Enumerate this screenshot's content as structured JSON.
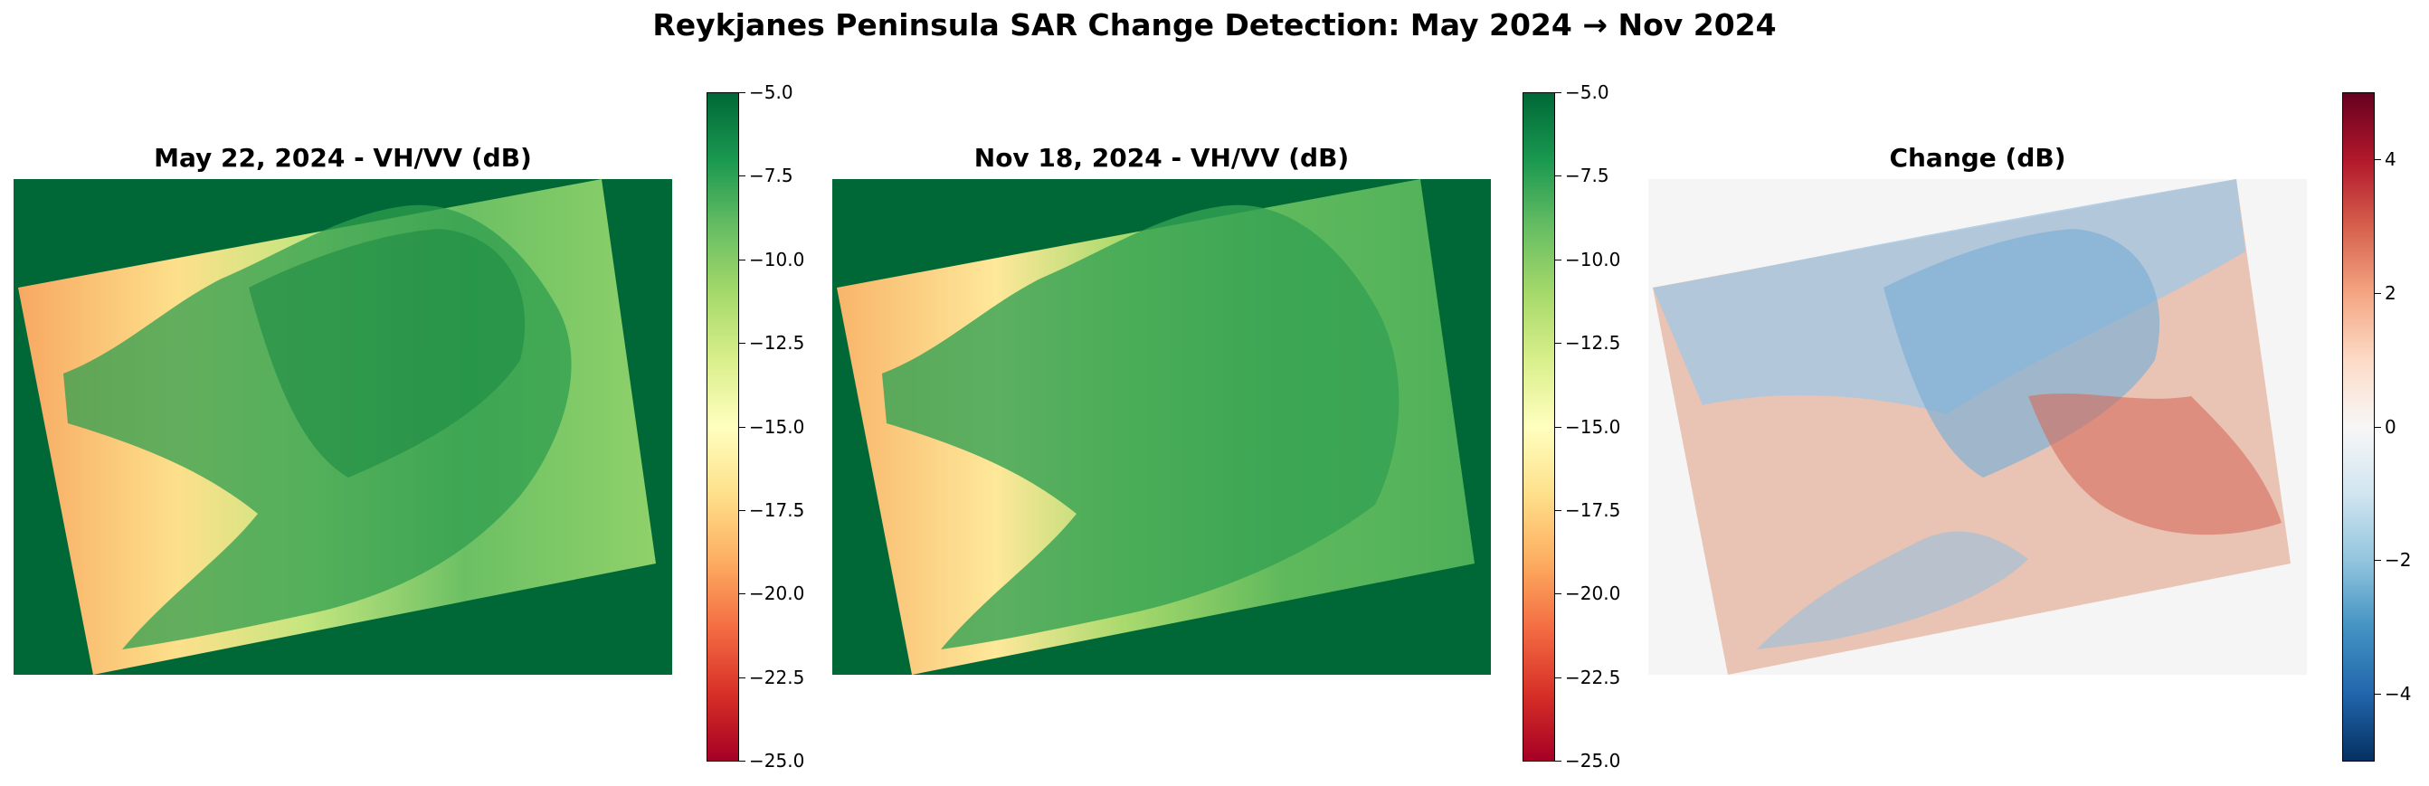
{
  "figure": {
    "suptitle": "Reykjanes Peninsula SAR Change Detection: May 2024 → Nov 2024"
  },
  "chart_data": [
    {
      "type": "heatmap",
      "title": "May 22, 2024 - VH/VV (dB)",
      "colormap": "RdYlGn",
      "colorbar": {
        "vmin": -25.0,
        "vmax": -5.0,
        "ticks": [
          -5.0,
          -7.5,
          -10.0,
          -12.5,
          -15.0,
          -17.5,
          -20.0,
          -22.5,
          -25.0
        ],
        "tick_labels": [
          "−5.0",
          "−7.5",
          "−10.0",
          "−12.5",
          "−15.0",
          "−17.5",
          "−20.0",
          "−22.5",
          "−25.0"
        ]
      },
      "nodata_color": "#006837",
      "axes_visible": false
    },
    {
      "type": "heatmap",
      "title": "Nov 18, 2024 - VH/VV (dB)",
      "colormap": "RdYlGn",
      "colorbar": {
        "vmin": -25.0,
        "vmax": -5.0,
        "ticks": [
          -5.0,
          -7.5,
          -10.0,
          -12.5,
          -15.0,
          -17.5,
          -20.0,
          -22.5,
          -25.0
        ],
        "tick_labels": [
          "−5.0",
          "−7.5",
          "−10.0",
          "−12.5",
          "−15.0",
          "−17.5",
          "−20.0",
          "−22.5",
          "−25.0"
        ]
      },
      "nodata_color": "#006837",
      "axes_visible": false
    },
    {
      "type": "heatmap",
      "title": "Change (dB)",
      "colormap": "RdBu_r",
      "colorbar": {
        "vmin": -5,
        "vmax": 5,
        "ticks": [
          4,
          2,
          0,
          -2,
          -4
        ],
        "tick_labels": [
          "4",
          "2",
          "0",
          "−2",
          "−4"
        ]
      },
      "nodata_color": "#f5f5f5",
      "axes_visible": false
    }
  ]
}
